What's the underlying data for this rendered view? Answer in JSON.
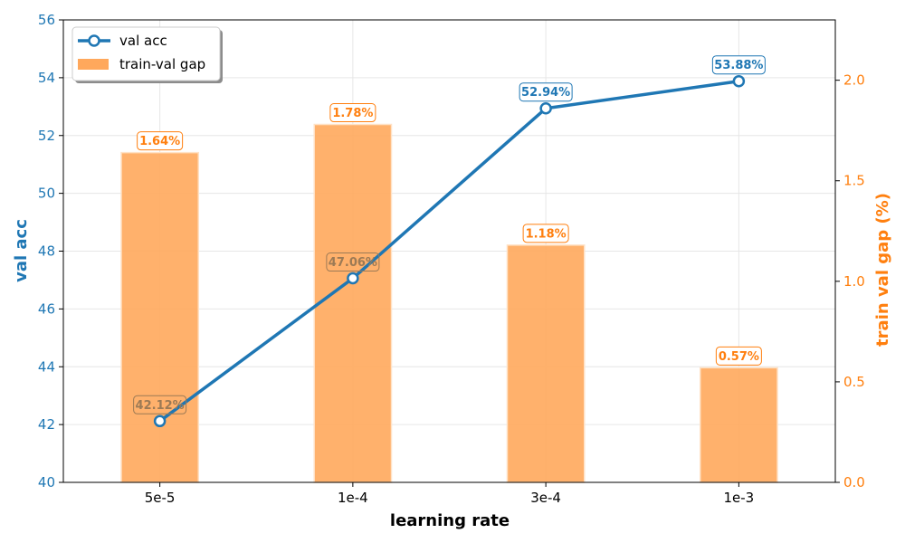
{
  "chart_data": {
    "type": "bar+line",
    "xlabel": "learning rate",
    "categories": [
      "5e-5",
      "1e-4",
      "3e-4",
      "1e-3"
    ],
    "line_series": {
      "name": "val acc",
      "axis": "left",
      "values": [
        42.12,
        47.06,
        52.94,
        53.88
      ],
      "labels": [
        "42.12%",
        "47.06%",
        "52.94%",
        "53.88%"
      ],
      "color": "#1f77b4"
    },
    "bar_series": {
      "name": "train-val gap",
      "axis": "right",
      "values": [
        1.64,
        1.78,
        1.18,
        0.57
      ],
      "labels": [
        "1.64%",
        "1.78%",
        "1.18%",
        "0.57%"
      ],
      "color": "#ffa85c"
    },
    "y_left": {
      "label": "val acc",
      "lim": [
        40,
        56
      ],
      "ticks": [
        40,
        42,
        44,
        46,
        48,
        50,
        52,
        54,
        56
      ],
      "color": "#1f77b4"
    },
    "y_right": {
      "label": "train val gap (%)",
      "lim": [
        0,
        2.3
      ],
      "ticks": [
        0.0,
        0.5,
        1.0,
        1.5,
        2.0
      ],
      "tick_labels": [
        "0.0",
        "0.5",
        "1.0",
        "1.5",
        "2.0"
      ],
      "color": "#ff7f0e"
    },
    "grid": true,
    "legend": "top-left"
  }
}
